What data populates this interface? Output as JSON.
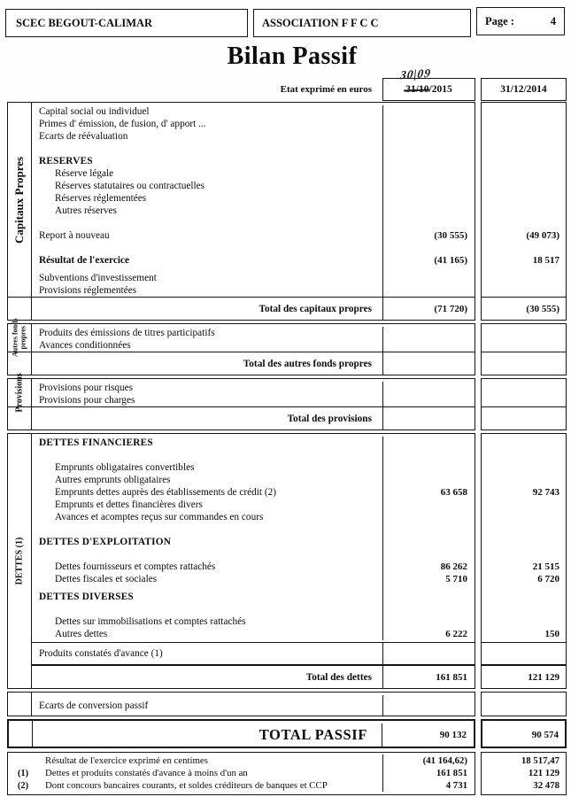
{
  "header": {
    "company": "SCEC BEGOUT-CALIMAR",
    "association": "ASSOCIATION F F C C",
    "page_label": "Page :",
    "page_number": "4"
  },
  "title": "Bilan Passif",
  "subtitle": {
    "expressed_in": "Etat exprimé en  euros",
    "col1_date_struck": "31/10",
    "col1_date_rest": "/2015",
    "col1_handwritten": "30|09",
    "col2_date": "31/12/2014"
  },
  "table": {
    "sections": [
      {
        "id": "capitaux-propres",
        "side_label": "Capitaux Propres",
        "side_size": "vt-lg",
        "strip_foot": true,
        "rows": [
          {
            "t": "r",
            "label": "Capital social ou individuel"
          },
          {
            "t": "r",
            "label": "Primes d' émission, de fusion, d' apport ..."
          },
          {
            "t": "r",
            "label": "Ecarts de réévaluation"
          },
          {
            "t": "b"
          },
          {
            "t": "h",
            "label": "RESERVES"
          },
          {
            "t": "r",
            "ind": 1,
            "label": "Réserve légale"
          },
          {
            "t": "r",
            "ind": 1,
            "label": "Réserves statutaires ou contractuelles"
          },
          {
            "t": "r",
            "ind": 1,
            "label": "Réserves réglementées"
          },
          {
            "t": "r",
            "ind": 1,
            "label": "Autres réserves"
          },
          {
            "t": "b"
          },
          {
            "t": "r",
            "label": "Report à nouveau",
            "v1": "(30 555)",
            "v2": "(49 073)"
          },
          {
            "t": "b"
          },
          {
            "t": "rb",
            "label": "Résultat de l'exercice",
            "v1": "(41 165)",
            "v2": "18 517"
          },
          {
            "t": "s"
          },
          {
            "t": "r",
            "label": "Subventions d'investissement"
          },
          {
            "t": "r",
            "label": "Provisions réglementées"
          }
        ],
        "total": {
          "label": "Total des capitaux propres",
          "v1": "(71 720)",
          "v2": "(30 555)"
        }
      },
      {
        "id": "autres-fonds-propres",
        "side_label": "Autres fonds\npropres",
        "side_size": "vt-sm",
        "strip_foot": true,
        "rows": [
          {
            "t": "r",
            "label": "Produits des émissions de titres participatifs"
          },
          {
            "t": "r",
            "label": "Avances conditionnées"
          }
        ],
        "total": {
          "label": "Total des autres fonds propres",
          "v1": "",
          "v2": ""
        }
      },
      {
        "id": "provisions",
        "side_label": "Provisions",
        "side_size": "vt-md",
        "strip_foot": true,
        "rows": [
          {
            "t": "r",
            "label": "Provisions pour risques"
          },
          {
            "t": "r",
            "label": "Provisions pour charges"
          }
        ],
        "total": {
          "label": "Total des provisions",
          "v1": "",
          "v2": ""
        }
      },
      {
        "id": "dettes",
        "side_label": "DETTES (1)",
        "side_size": "vt-md",
        "strip_foot": false,
        "rows": [
          {
            "t": "h",
            "label": "DETTES FINANCIERES"
          },
          {
            "t": "b"
          },
          {
            "t": "r",
            "ind": 1,
            "label": "Emprunts obligataires convertibles"
          },
          {
            "t": "r",
            "ind": 1,
            "label": "Autres emprunts obligataires"
          },
          {
            "t": "r",
            "ind": 1,
            "label": "Emprunts dettes auprès des établissements de crédit (2)",
            "v1": "63 658",
            "v2": "92 743"
          },
          {
            "t": "r",
            "ind": 1,
            "label": "Emprunts et dettes financières divers"
          },
          {
            "t": "r",
            "ind": 1,
            "label": "Avances et acomptes reçus sur commandes en cours"
          },
          {
            "t": "b"
          },
          {
            "t": "h",
            "label": "DETTES D'EXPLOITATION"
          },
          {
            "t": "b"
          },
          {
            "t": "r",
            "ind": 1,
            "label": "Dettes fournisseurs et comptes rattachés",
            "v1": "86 262",
            "v2": "21 515"
          },
          {
            "t": "r",
            "ind": 1,
            "label": "Dettes fiscales et sociales",
            "v1": "5 710",
            "v2": "6 720"
          },
          {
            "t": "s"
          },
          {
            "t": "h",
            "label": "DETTES DIVERSES"
          },
          {
            "t": "b"
          },
          {
            "t": "r",
            "ind": 1,
            "label": "Dettes sur immobilisations et comptes rattachés"
          },
          {
            "t": "r",
            "ind": 1,
            "label": "Autres dettes",
            "v1": "6 222",
            "v2": "150"
          }
        ],
        "sep_row": {
          "label": "Produits constatés d'avance (1)",
          "v1": "",
          "v2": ""
        },
        "total": {
          "label": "Total des dettes",
          "v1": "161 851",
          "v2": "121 129"
        }
      },
      {
        "id": "ecarts-conversion",
        "solo": true,
        "side_label": "",
        "rows": [],
        "solo_row": {
          "label": "Ecarts de conversion passif",
          "v1": "",
          "v2": ""
        }
      },
      {
        "id": "total-passif",
        "solo": true,
        "emph": true,
        "side_label": "",
        "rows": [],
        "total": {
          "label": "TOTAL PASSIF",
          "v1": "90 132",
          "v2": "90 574",
          "big": true
        }
      }
    ]
  },
  "footer": {
    "rows": [
      {
        "num": "",
        "label": "Résultat de l'exercice exprimé en centimes",
        "v1": "(41 164,62)",
        "v2": "18 517,47"
      },
      {
        "num": "(1)",
        "label": "Dettes et produits constatés d'avance à moins d'un an",
        "v1": "161 851",
        "v2": "121 129"
      },
      {
        "num": "(2)",
        "label": "Dont concours bancaires courants, et soldes créditeurs de banques et CCP",
        "v1": "4 731",
        "v2": "32 478"
      }
    ]
  }
}
